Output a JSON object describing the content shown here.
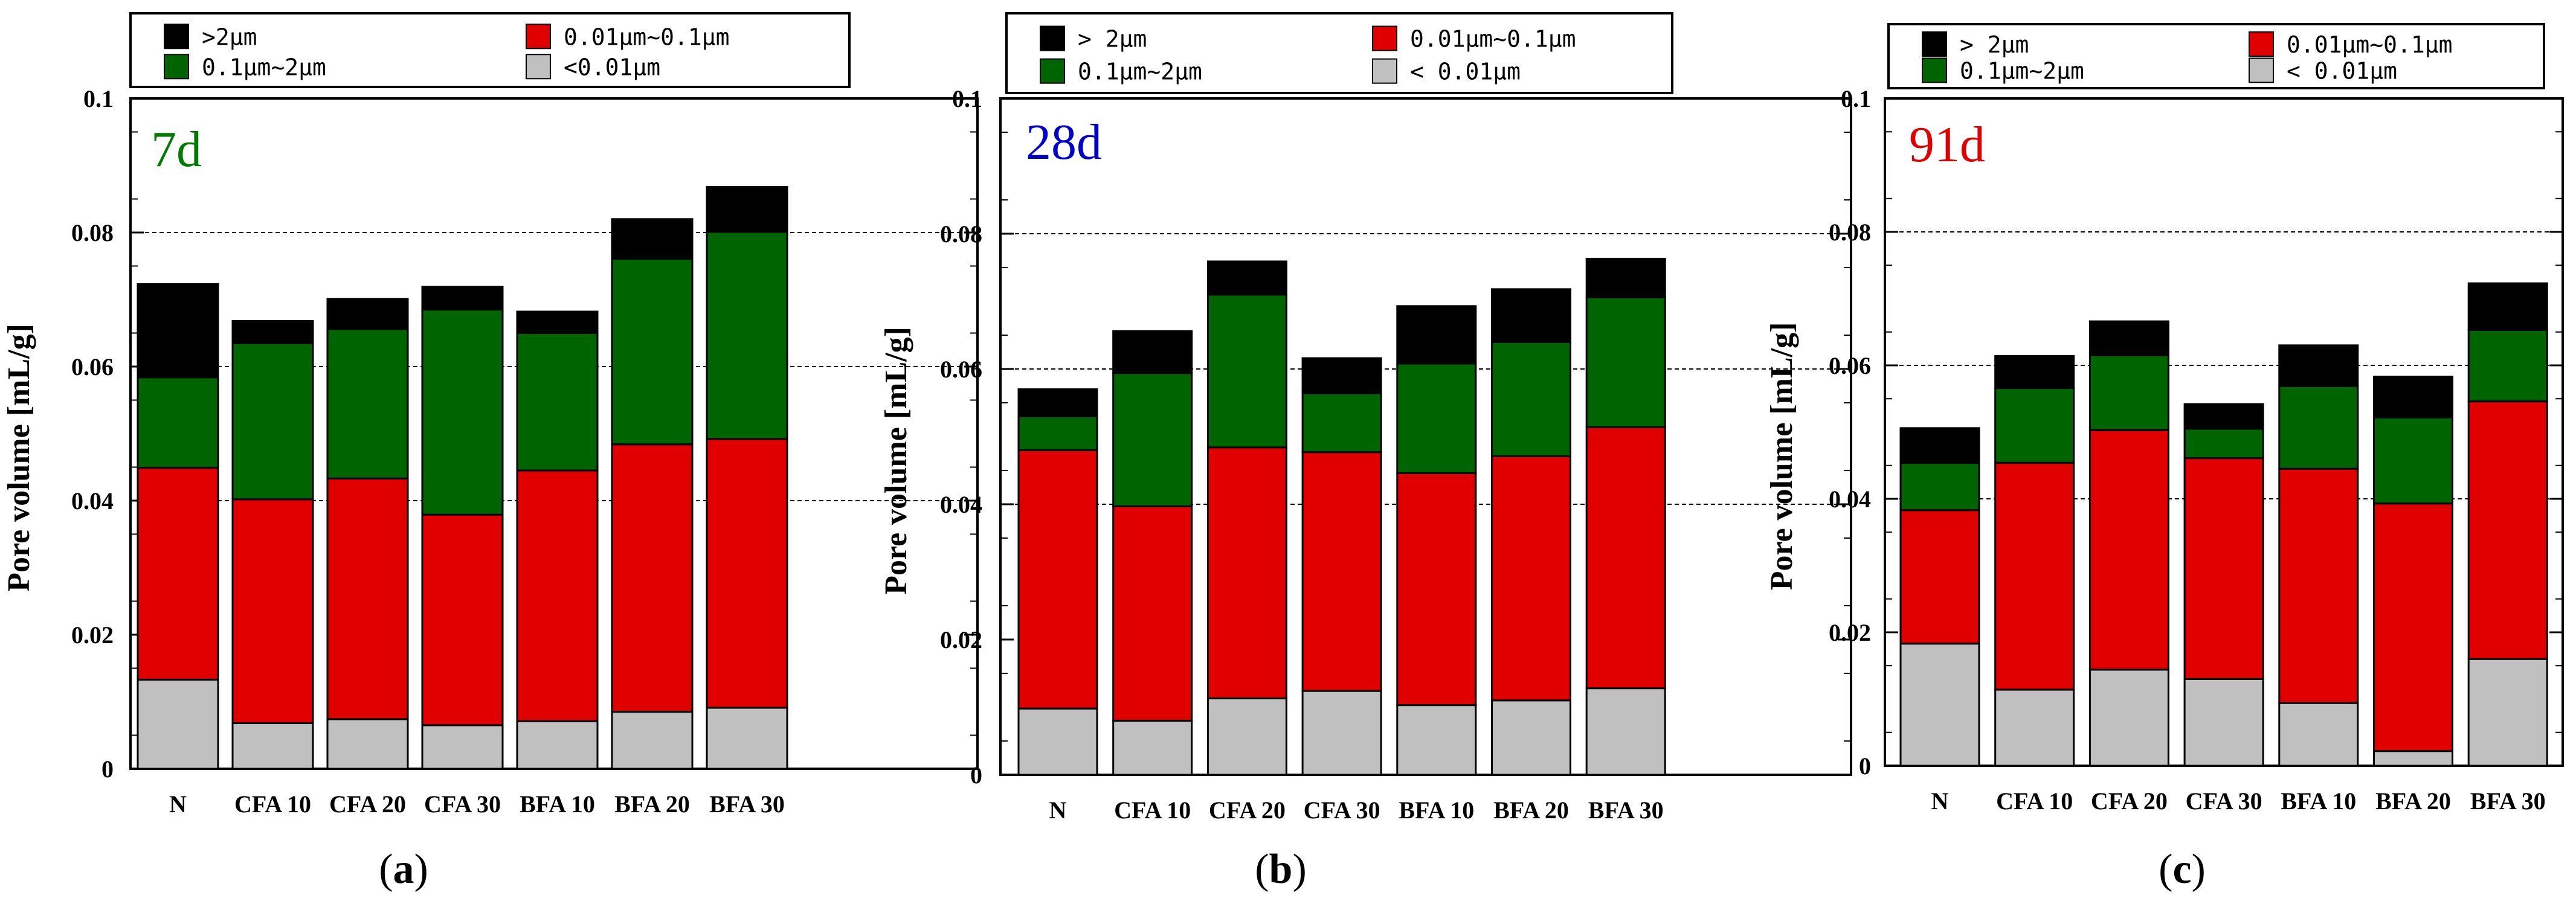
{
  "colors": {
    "gt2": "#000000",
    "mid": "#006400",
    "small": "#e00000",
    "lt001": "#c0c0c0",
    "label_7d": "#007a00",
    "label_28d": "#0000cc",
    "label_91d": "#e00000"
  },
  "chart_data": [
    {
      "type": "bar",
      "stacked": true,
      "panel_label": "a",
      "age_label": "7d",
      "age_color_key": "label_7d",
      "ylabel": "Pore volume [mL/g]",
      "ylim": [
        0,
        0.1
      ],
      "yticks": [
        "0",
        "0.02",
        "0.04",
        "0.06",
        "0.08",
        "0.1"
      ],
      "grid_lines": [
        0.04,
        0.06,
        0.08
      ],
      "legend": [
        {
          "label": ">2μm",
          "color_key": "gt2"
        },
        {
          "label": "0.01μm~0.1μm",
          "color_key": "small"
        },
        {
          "label": "0.1μm~2μm",
          "color_key": "mid"
        },
        {
          "label": "<0.01μm",
          "color_key": "lt001"
        }
      ],
      "categories": [
        "N",
        "CFA 10",
        "CFA 20",
        "CFA 30",
        "BFA 10",
        "BFA 20",
        "BFA 30"
      ],
      "series": [
        {
          "name": "<0.01μm",
          "color_key": "lt001",
          "values": [
            0.0133,
            0.0068,
            0.0074,
            0.0065,
            0.0071,
            0.0085,
            0.0091
          ]
        },
        {
          "name": "0.01μm~0.1μm",
          "color_key": "small",
          "values": [
            0.0316,
            0.0334,
            0.0359,
            0.0314,
            0.0374,
            0.0399,
            0.0401
          ]
        },
        {
          "name": "0.1μm~2μm",
          "color_key": "mid",
          "values": [
            0.0135,
            0.0233,
            0.0223,
            0.0306,
            0.0205,
            0.0277,
            0.0309
          ]
        },
        {
          "name": ">2μm",
          "color_key": "gt2",
          "values": [
            0.0139,
            0.0033,
            0.0045,
            0.0034,
            0.0032,
            0.0059,
            0.0067
          ]
        }
      ]
    },
    {
      "type": "bar",
      "stacked": true,
      "panel_label": "b",
      "age_label": "28d",
      "age_color_key": "label_28d",
      "ylabel": "Pore volume [mL/g]",
      "ylim": [
        0,
        0.1
      ],
      "yticks": [
        "0",
        "0.02",
        "0.04",
        "0.06",
        "0.08",
        "0.1"
      ],
      "grid_lines": [
        0.04,
        0.06,
        0.08
      ],
      "legend": [
        {
          "label": "> 2μm",
          "color_key": "gt2"
        },
        {
          "label": "0.01μm~0.1μm",
          "color_key": "small"
        },
        {
          "label": "0.1μm~2μm",
          "color_key": "mid"
        },
        {
          "label": "< 0.01μm",
          "color_key": "lt001"
        }
      ],
      "categories": [
        "N",
        "CFA 10",
        "CFA 20",
        "CFA 30",
        "BFA 10",
        "BFA 20",
        "BFA 30"
      ],
      "series": [
        {
          "name": "< 0.01μm",
          "color_key": "lt001",
          "values": [
            0.0098,
            0.008,
            0.0113,
            0.0124,
            0.0103,
            0.011,
            0.0128
          ]
        },
        {
          "name": "0.01μm~0.1μm",
          "color_key": "small",
          "values": [
            0.0382,
            0.0317,
            0.0371,
            0.0353,
            0.0343,
            0.0361,
            0.0386
          ]
        },
        {
          "name": "0.1μm~2μm",
          "color_key": "mid",
          "values": [
            0.005,
            0.0197,
            0.0226,
            0.0087,
            0.0162,
            0.0169,
            0.0192
          ]
        },
        {
          "name": "> 2μm",
          "color_key": "gt2",
          "values": [
            0.004,
            0.0062,
            0.0049,
            0.0052,
            0.0085,
            0.0078,
            0.0057
          ]
        }
      ]
    },
    {
      "type": "bar",
      "stacked": true,
      "panel_label": "c",
      "age_label": "91d",
      "age_color_key": "label_91d",
      "ylabel": "Pore volume [mL/g]",
      "ylim": [
        0,
        0.1
      ],
      "yticks": [
        "0",
        "0.02",
        "0.04",
        "0.06",
        "0.08",
        "0.1"
      ],
      "grid_lines": [
        0.04,
        0.06,
        0.08
      ],
      "legend": [
        {
          "label": "> 2μm",
          "color_key": "gt2"
        },
        {
          "label": "0.01μm~0.1μm",
          "color_key": "small"
        },
        {
          "label": "0.1μm~2μm",
          "color_key": "mid"
        },
        {
          "label": "< 0.01μm",
          "color_key": "lt001"
        }
      ],
      "categories": [
        "N",
        "CFA 10",
        "CFA 20",
        "CFA 30",
        "BFA 10",
        "BFA 20",
        "BFA 30"
      ],
      "series": [
        {
          "name": "< 0.01μm",
          "color_key": "lt001",
          "values": [
            0.0183,
            0.0114,
            0.0144,
            0.013,
            0.0094,
            0.0022,
            0.016
          ]
        },
        {
          "name": "0.01μm~0.1μm",
          "color_key": "small",
          "values": [
            0.02,
            0.034,
            0.0359,
            0.0331,
            0.0351,
            0.0371,
            0.0386
          ]
        },
        {
          "name": "0.1μm~2μm",
          "color_key": "mid",
          "values": [
            0.0071,
            0.0112,
            0.0112,
            0.0044,
            0.0124,
            0.0129,
            0.0107
          ]
        },
        {
          "name": "> 2μm",
          "color_key": "gt2",
          "values": [
            0.0052,
            0.0048,
            0.0051,
            0.0037,
            0.0061,
            0.0061,
            0.007
          ]
        }
      ]
    }
  ]
}
